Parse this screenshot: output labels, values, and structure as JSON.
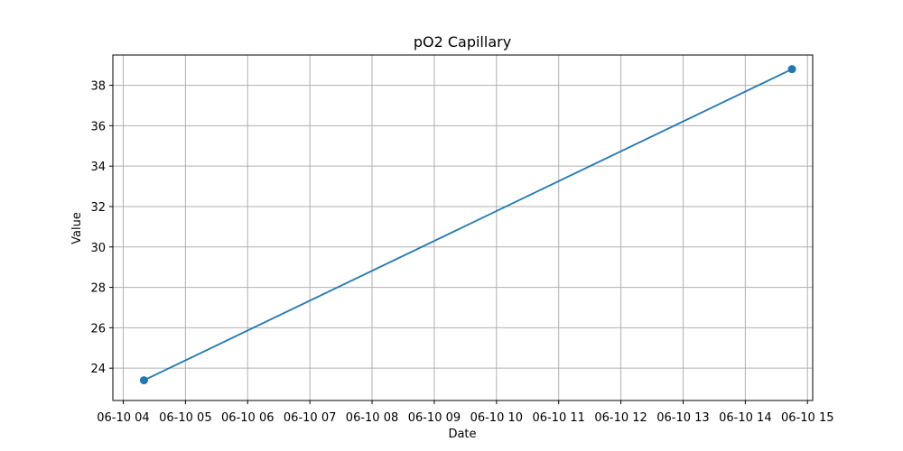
{
  "chart_data": {
    "type": "line",
    "title": "pO2 Capillary",
    "xlabel": "Date",
    "ylabel": "Value",
    "x_ticks": [
      "06-10 04",
      "06-10 05",
      "06-10 06",
      "06-10 07",
      "06-10 08",
      "06-10 09",
      "06-10 10",
      "06-10 11",
      "06-10 12",
      "06-10 13",
      "06-10 14",
      "06-10 15"
    ],
    "x_values": [
      "06-10 04:20",
      "06-10 14:45"
    ],
    "y_values": [
      23.4,
      38.8
    ],
    "xlim": [
      "06-10 03:50",
      "06-10 15:05"
    ],
    "ylim": [
      22.4,
      39.5
    ],
    "y_ticks": [
      24,
      26,
      28,
      30,
      32,
      34,
      36,
      38
    ],
    "grid": true,
    "series_color": "#1f77b4",
    "marker": "circle"
  }
}
